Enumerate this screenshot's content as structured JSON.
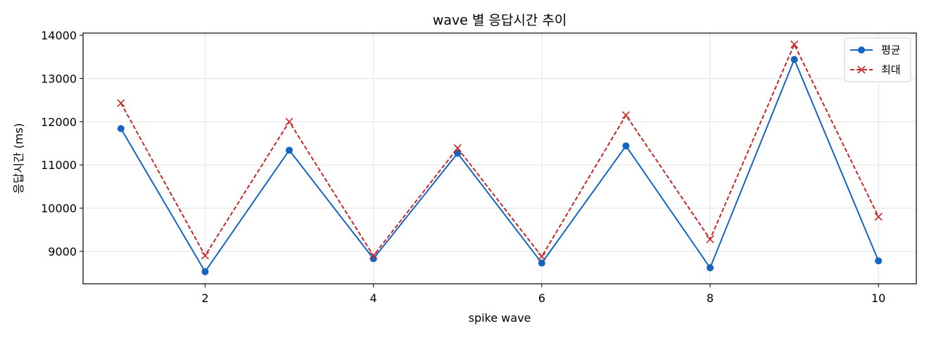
{
  "chart_data": {
    "type": "line",
    "title": "wave 별 응답시간 추이",
    "xlabel": "spike wave",
    "ylabel": "응답시간 (ms)",
    "x": [
      1,
      2,
      3,
      4,
      5,
      6,
      7,
      8,
      9,
      10
    ],
    "xticks": [
      2,
      4,
      6,
      8,
      10
    ],
    "yticks": [
      9000,
      10000,
      11000,
      12000,
      13000,
      14000
    ],
    "xlim": [
      0.55,
      10.45
    ],
    "ylim": [
      8250,
      14050
    ],
    "grid": true,
    "legend_position": "top-right",
    "series": [
      {
        "name": "평균",
        "color": "#1565c0",
        "marker": "circle",
        "line_style": "solid",
        "values": [
          11840,
          8530,
          11340,
          8830,
          11270,
          8730,
          11440,
          8620,
          13440,
          8780
        ]
      },
      {
        "name": "최대",
        "color": "#c62828",
        "marker": "x",
        "line_style": "dashed",
        "values": [
          12430,
          8900,
          12000,
          8900,
          11390,
          8880,
          12150,
          9280,
          13790,
          9800
        ]
      }
    ]
  }
}
